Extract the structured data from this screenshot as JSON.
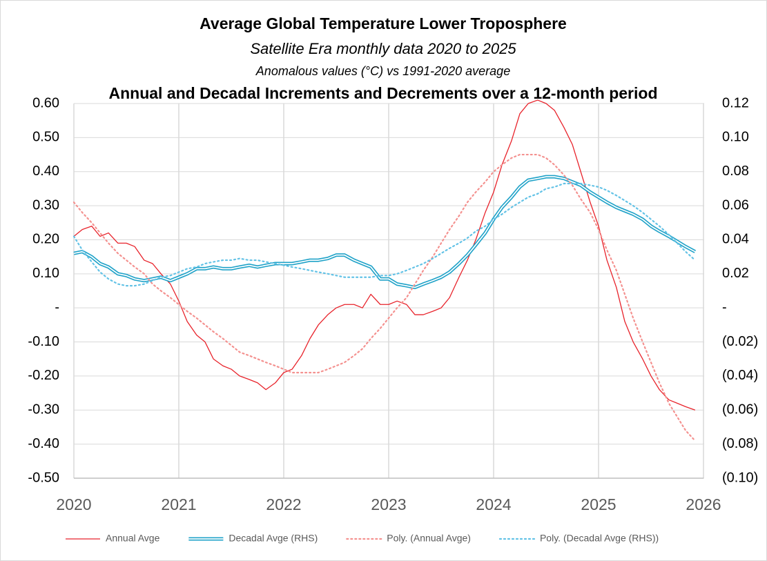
{
  "chart_data": {
    "type": "line",
    "title": "Average Global Temperature Lower Troposphere",
    "subtitles": [
      "Satellite Era monthly data 2020 to 2025",
      "Anomalous values (°C) vs 1991-2020 average"
    ],
    "heading": "Annual and Decadal Increments and Decrements over a 12-month period",
    "x": [
      2020,
      2020.08,
      2020.17,
      2020.25,
      2020.33,
      2020.42,
      2020.5,
      2020.58,
      2020.67,
      2020.75,
      2020.83,
      2020.92,
      2021,
      2021.08,
      2021.17,
      2021.25,
      2021.33,
      2021.42,
      2021.5,
      2021.58,
      2021.67,
      2021.75,
      2021.83,
      2021.92,
      2022,
      2022.08,
      2022.17,
      2022.25,
      2022.33,
      2022.42,
      2022.5,
      2022.58,
      2022.67,
      2022.75,
      2022.83,
      2022.92,
      2023,
      2023.08,
      2023.17,
      2023.25,
      2023.33,
      2023.42,
      2023.5,
      2023.58,
      2023.67,
      2023.75,
      2023.83,
      2023.92,
      2024,
      2024.08,
      2024.17,
      2024.25,
      2024.33,
      2024.42,
      2024.5,
      2024.58,
      2024.67,
      2024.75,
      2024.83,
      2024.92,
      2025,
      2025.08,
      2025.17,
      2025.25,
      2025.33,
      2025.42,
      2025.5,
      2025.58,
      2025.67,
      2025.75,
      2025.83,
      2025.92
    ],
    "series": [
      {
        "name": "Annual Avge",
        "color": "#e8222a",
        "width": 1.3,
        "dash": "solid",
        "axis": "y",
        "values": [
          0.21,
          0.23,
          0.24,
          0.21,
          0.22,
          0.19,
          0.19,
          0.18,
          0.14,
          0.13,
          0.1,
          0.07,
          0.02,
          -0.04,
          -0.08,
          -0.1,
          -0.15,
          -0.17,
          -0.18,
          -0.2,
          -0.21,
          -0.22,
          -0.24,
          -0.22,
          -0.19,
          -0.18,
          -0.14,
          -0.09,
          -0.05,
          -0.02,
          0.0,
          0.01,
          0.01,
          0.0,
          0.04,
          0.01,
          0.01,
          0.02,
          0.01,
          -0.02,
          -0.02,
          -0.01,
          0.0,
          0.03,
          0.09,
          0.14,
          0.2,
          0.28,
          0.34,
          0.42,
          0.49,
          0.57,
          0.6,
          0.61,
          0.6,
          0.58,
          0.53,
          0.48,
          0.4,
          0.31,
          0.24,
          0.14,
          0.06,
          -0.04,
          -0.1,
          -0.15,
          -0.2,
          -0.24,
          -0.27,
          -0.28,
          -0.29,
          -0.3
        ]
      },
      {
        "name": "Decadal Avge (RHS)",
        "color": "#1fa2c8",
        "width": 5,
        "dash": "double",
        "axis": "y2",
        "values": [
          0.032,
          0.033,
          0.03,
          0.026,
          0.024,
          0.02,
          0.019,
          0.017,
          0.016,
          0.017,
          0.018,
          0.016,
          0.018,
          0.02,
          0.023,
          0.023,
          0.024,
          0.023,
          0.023,
          0.024,
          0.025,
          0.024,
          0.025,
          0.026,
          0.026,
          0.026,
          0.027,
          0.028,
          0.028,
          0.029,
          0.031,
          0.031,
          0.028,
          0.026,
          0.024,
          0.017,
          0.017,
          0.014,
          0.013,
          0.012,
          0.014,
          0.016,
          0.018,
          0.021,
          0.026,
          0.031,
          0.037,
          0.044,
          0.052,
          0.059,
          0.065,
          0.071,
          0.075,
          0.076,
          0.077,
          0.077,
          0.076,
          0.074,
          0.072,
          0.068,
          0.065,
          0.062,
          0.059,
          0.057,
          0.055,
          0.052,
          0.048,
          0.045,
          0.042,
          0.039,
          0.036,
          0.033
        ]
      },
      {
        "name": "Poly. (Annual Avge)",
        "color": "#f4918f",
        "width": 2.2,
        "dash": "dotted",
        "axis": "y",
        "values": [
          0.31,
          0.28,
          0.25,
          0.22,
          0.19,
          0.16,
          0.14,
          0.12,
          0.1,
          0.07,
          0.05,
          0.03,
          0.01,
          -0.01,
          -0.03,
          -0.05,
          -0.07,
          -0.09,
          -0.11,
          -0.13,
          -0.14,
          -0.15,
          -0.16,
          -0.17,
          -0.18,
          -0.19,
          -0.19,
          -0.19,
          -0.19,
          -0.18,
          -0.17,
          -0.16,
          -0.14,
          -0.12,
          -0.09,
          -0.06,
          -0.03,
          0.0,
          0.03,
          0.07,
          0.11,
          0.15,
          0.19,
          0.23,
          0.27,
          0.31,
          0.34,
          0.37,
          0.4,
          0.42,
          0.44,
          0.45,
          0.45,
          0.45,
          0.44,
          0.42,
          0.39,
          0.36,
          0.32,
          0.28,
          0.23,
          0.17,
          0.11,
          0.04,
          -0.03,
          -0.1,
          -0.16,
          -0.22,
          -0.28,
          -0.32,
          -0.36,
          -0.39
        ]
      },
      {
        "name": "Poly. (Decadal Avge (RHS))",
        "color": "#62c2e6",
        "width": 2.2,
        "dash": "dotted",
        "axis": "y2",
        "values": [
          0.042,
          0.034,
          0.027,
          0.021,
          0.017,
          0.014,
          0.013,
          0.013,
          0.014,
          0.016,
          0.018,
          0.019,
          0.021,
          0.023,
          0.024,
          0.026,
          0.027,
          0.028,
          0.028,
          0.029,
          0.028,
          0.028,
          0.027,
          0.026,
          0.025,
          0.024,
          0.023,
          0.022,
          0.021,
          0.02,
          0.019,
          0.018,
          0.018,
          0.018,
          0.018,
          0.019,
          0.019,
          0.02,
          0.022,
          0.024,
          0.026,
          0.029,
          0.032,
          0.035,
          0.038,
          0.041,
          0.045,
          0.048,
          0.052,
          0.055,
          0.059,
          0.062,
          0.065,
          0.067,
          0.07,
          0.071,
          0.073,
          0.073,
          0.073,
          0.072,
          0.071,
          0.069,
          0.066,
          0.063,
          0.06,
          0.056,
          0.052,
          0.048,
          0.043,
          0.038,
          0.033,
          0.028
        ]
      }
    ],
    "xlim": [
      2020,
      2026
    ],
    "xticks": [
      2020,
      2021,
      2022,
      2023,
      2024,
      2025,
      2026
    ],
    "ylim": [
      -0.5,
      0.6
    ],
    "yticks": [
      {
        "value": 0.6,
        "label": "0.60"
      },
      {
        "value": 0.5,
        "label": "0.50"
      },
      {
        "value": 0.4,
        "label": "0.40"
      },
      {
        "value": 0.3,
        "label": "0.30"
      },
      {
        "value": 0.2,
        "label": "0.20"
      },
      {
        "value": 0.1,
        "label": "0.10"
      },
      {
        "value": 0,
        "label": "-"
      },
      {
        "value": -0.1,
        "label": "-0.10"
      },
      {
        "value": -0.2,
        "label": "-0.20"
      },
      {
        "value": -0.3,
        "label": "-0.30"
      },
      {
        "value": -0.4,
        "label": "-0.40"
      },
      {
        "value": -0.5,
        "label": "-0.50"
      }
    ],
    "y2lim": [
      -0.1,
      0.12
    ],
    "y2ticks": [
      {
        "value": 0.12,
        "label": "0.12"
      },
      {
        "value": 0.1,
        "label": "0.10"
      },
      {
        "value": 0.08,
        "label": "0.08"
      },
      {
        "value": 0.06,
        "label": "0.06"
      },
      {
        "value": 0.04,
        "label": "0.04"
      },
      {
        "value": 0.02,
        "label": "0.02"
      },
      {
        "value": 0,
        "label": "-"
      },
      {
        "value": -0.02,
        "label": "(0.02)"
      },
      {
        "value": -0.04,
        "label": "(0.04)"
      },
      {
        "value": -0.06,
        "label": "(0.06)"
      },
      {
        "value": -0.08,
        "label": "(0.08)"
      },
      {
        "value": -0.1,
        "label": "(0.10)"
      }
    ],
    "grid": true,
    "legend": "bottom"
  }
}
